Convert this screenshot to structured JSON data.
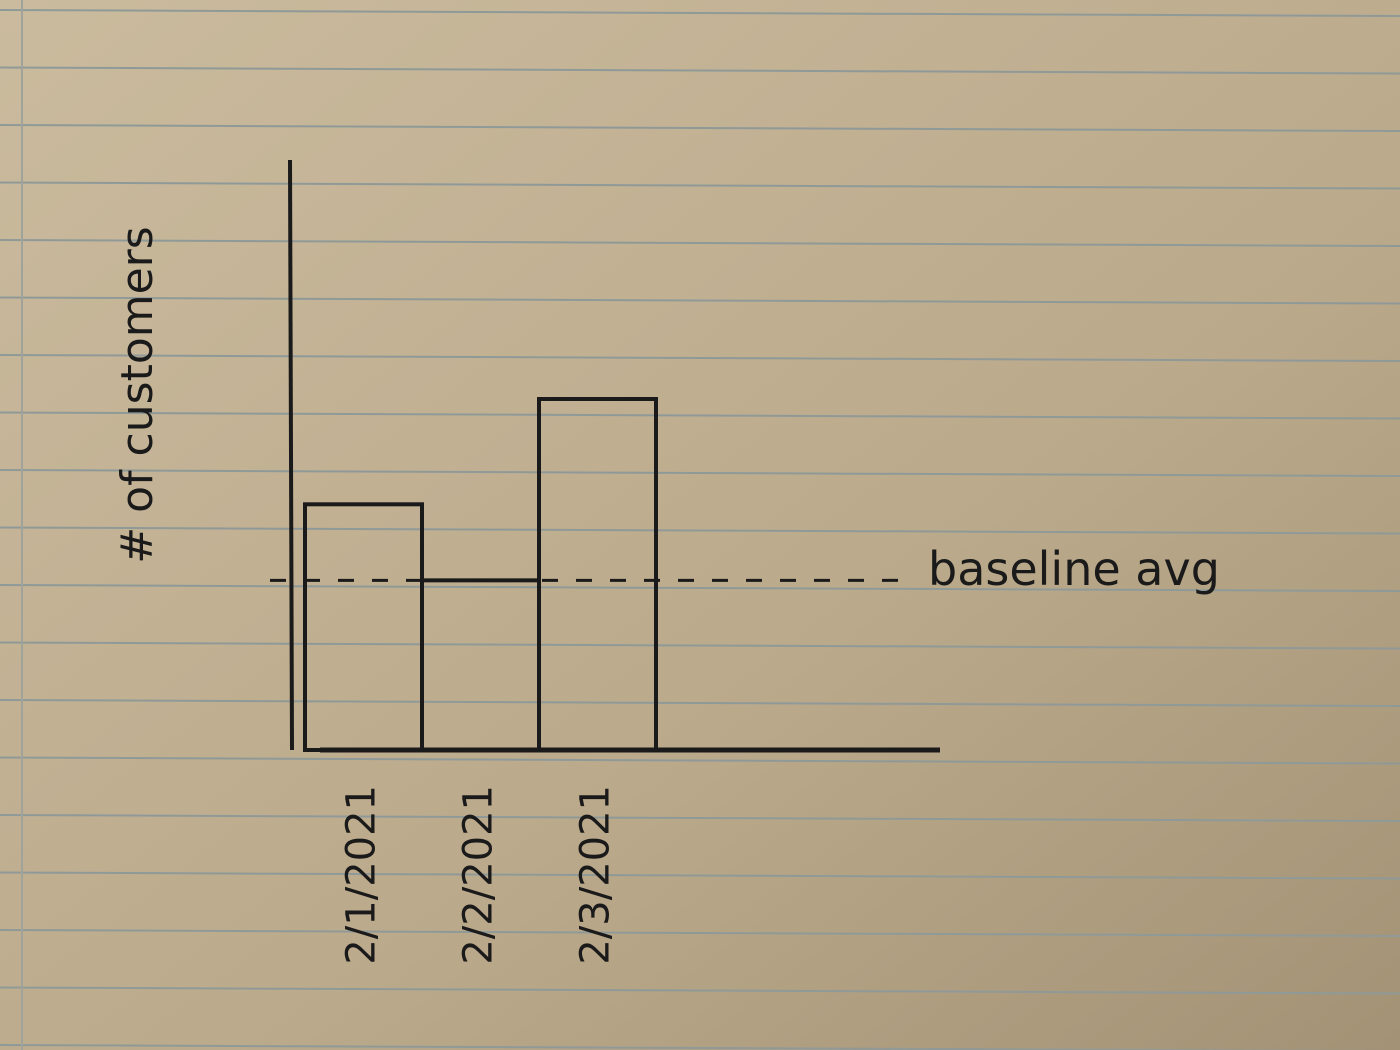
{
  "chart_data": {
    "type": "bar",
    "y_label": "# of customers",
    "categories": [
      "2/1/2021",
      "2/2/2021",
      "2/3/2021"
    ],
    "values": [
      42,
      29,
      60
    ],
    "color": "#1a1a1a",
    "ylim": [
      0,
      100
    ],
    "reference_line": {
      "label": "baseline avg",
      "value": 29
    }
  }
}
